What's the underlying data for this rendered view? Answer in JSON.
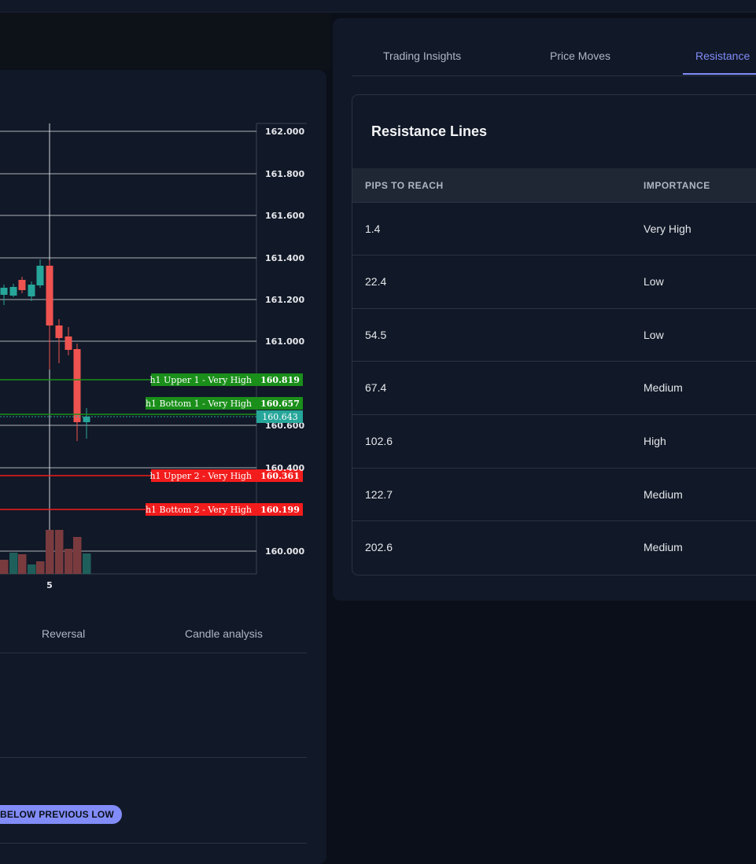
{
  "chart": {
    "price_ticks": [
      "162.000",
      "161.800",
      "161.600",
      "161.400",
      "161.200",
      "161.000",
      "160.600",
      "160.400",
      "160.000"
    ],
    "x_ticks": [
      "5"
    ],
    "lines": [
      {
        "label": "h1 Upper 1 - Very High",
        "price": "160.819",
        "color": "#1a8f1a"
      },
      {
        "label": "h1 Bottom 1 - Very High",
        "price": "160.657",
        "color": "#1a8f1a"
      },
      {
        "label": "h1 Upper 2 - Very High",
        "price": "160.361",
        "color": "#f21c1c"
      },
      {
        "label": "h1 Bottom 2 - Very High",
        "price": "160.199",
        "color": "#f21c1c"
      }
    ],
    "current_price": "160.643",
    "colors": {
      "bull": "#26a69a",
      "bear": "#ef5350",
      "support": "#1a8f1a",
      "resistance": "#f21c1c"
    }
  },
  "bottom_tabs": [
    "Reversal",
    "Candle analysis"
  ],
  "badge": "BELOW PREVIOUS LOW",
  "tabs": [
    "Trading Insights",
    "Price Moves",
    "Resistance"
  ],
  "card": {
    "title": "Resistance Lines",
    "columns": [
      "PIPS TO REACH",
      "IMPORTANCE"
    ],
    "rows": [
      {
        "pips": "1.4",
        "importance": "Very High"
      },
      {
        "pips": "22.4",
        "importance": "Low"
      },
      {
        "pips": "54.5",
        "importance": "Low"
      },
      {
        "pips": "67.4",
        "importance": "Medium"
      },
      {
        "pips": "102.6",
        "importance": "High"
      },
      {
        "pips": "122.7",
        "importance": "Medium"
      },
      {
        "pips": "202.6",
        "importance": "Medium"
      }
    ]
  }
}
